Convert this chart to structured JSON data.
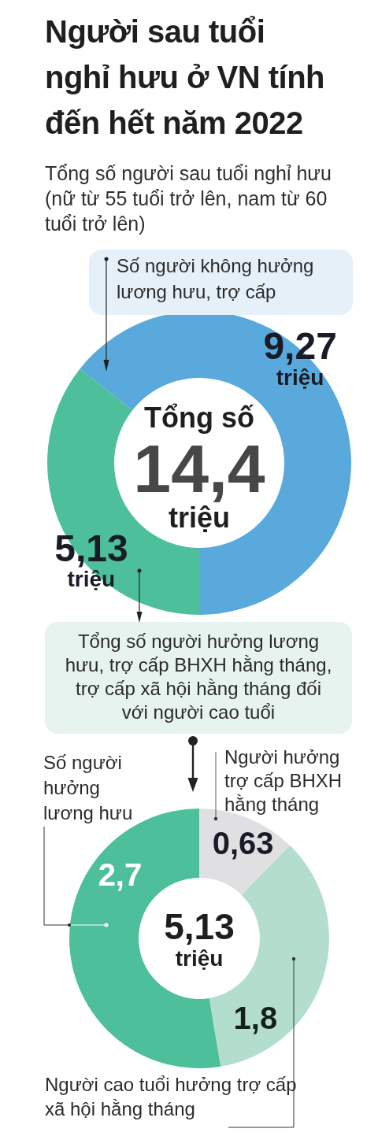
{
  "chart_data": [
    {
      "type": "donut",
      "title": "Người sau tuổi nghỉ hưu ở VN tính đến hết năm 2022",
      "subtitle": "Tổng số người sau tuổi nghỉ hưu (nữ từ 55 tuổi trở lên, nam từ 60 tuổi trở lên)",
      "categories": [
        "Số người không hưởng lương hưu, trợ cấp",
        "Tổng số người hưởng lương hưu, trợ cấp BHXH hằng tháng, trợ cấp xã hội hằng tháng đối với người cao tuổi"
      ],
      "values": [
        9.27,
        5.13
      ],
      "colors": [
        "#5aa9dc",
        "#4dbf9a"
      ],
      "value_labels": [
        "9,27 triệu",
        "5,13 triệu"
      ],
      "annotations": [
        "Tổng số",
        "14,4",
        "triệu"
      ]
    },
    {
      "type": "donut",
      "categories": [
        "Người hưởng trợ cấp BHXH hằng tháng",
        "Người cao tuổi hưởng trợ cấp xã hội hằng tháng",
        "Số người hưởng lương hưu"
      ],
      "values": [
        0.63,
        1.8,
        2.7
      ],
      "colors": [
        "#e0e0e2",
        "#b3dece",
        "#4dbf9a"
      ],
      "value_labels": [
        "0,63",
        "1,8",
        "2,7"
      ],
      "annotations": [
        "5,13",
        "triệu"
      ]
    }
  ]
}
